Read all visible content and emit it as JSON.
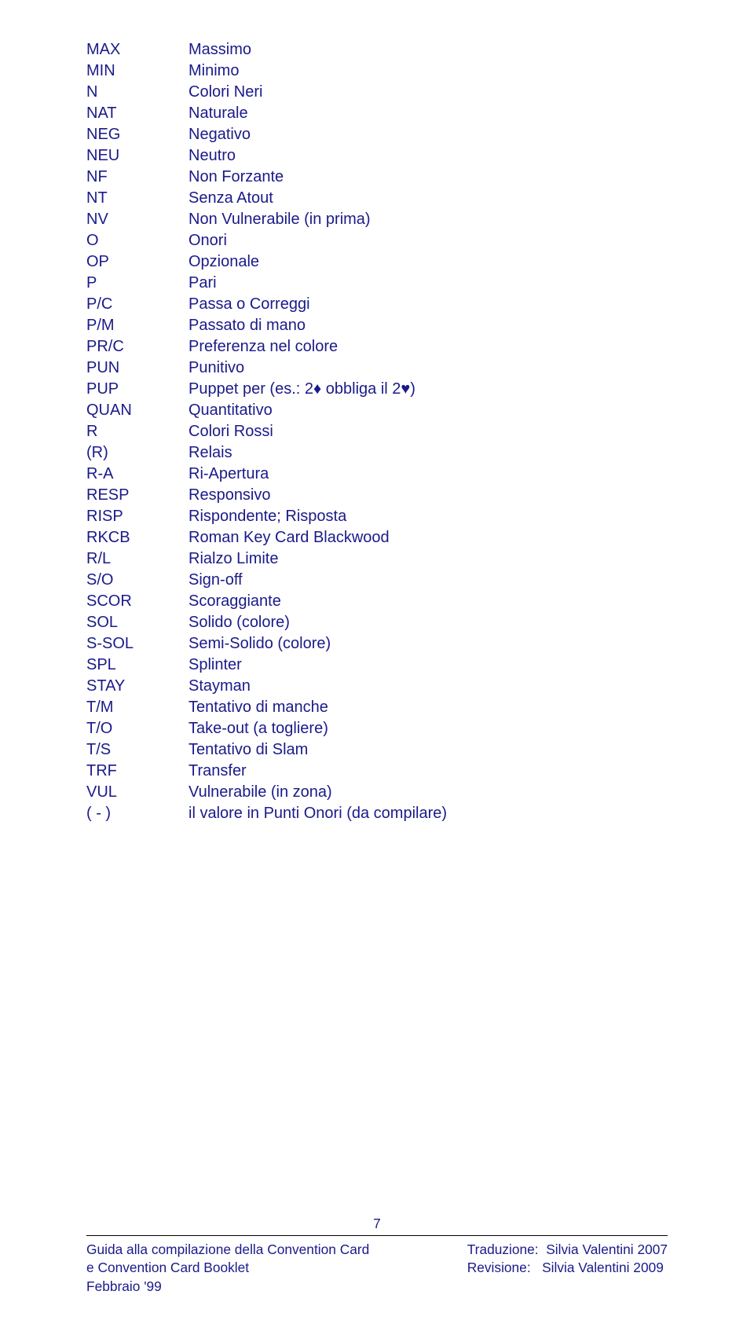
{
  "text_color": "#1a1a8a",
  "font_size_pt": 15,
  "line_height": 1.35,
  "footer_font_size_pt": 13,
  "suit_diamond": "♦",
  "suit_heart": "♥",
  "entries": [
    {
      "abbr": "MAX",
      "def": "Massimo"
    },
    {
      "abbr": "MIN",
      "def": "Minimo"
    },
    {
      "abbr": "N",
      "def": "Colori Neri"
    },
    {
      "abbr": "NAT",
      "def": "Naturale"
    },
    {
      "abbr": "NEG",
      "def": "Negativo"
    },
    {
      "abbr": "NEU",
      "def": "Neutro"
    },
    {
      "abbr": "NF",
      "def": "Non Forzante"
    },
    {
      "abbr": "NT",
      "def": "Senza Atout"
    },
    {
      "abbr": "NV",
      "def": "Non Vulnerabile (in prima)"
    },
    {
      "abbr": "O",
      "def": "Onori"
    },
    {
      "abbr": "OP",
      "def": "Opzionale"
    },
    {
      "abbr": "P",
      "def": "Pari"
    },
    {
      "abbr": "P/C",
      "def": "Passa o Correggi"
    },
    {
      "abbr": "P/M",
      "def": "Passato di mano"
    },
    {
      "abbr": "PR/C",
      "def": "Preferenza nel colore"
    },
    {
      "abbr": "PUN",
      "def": "Punitivo"
    },
    {
      "abbr": "PUP",
      "def_pre": "Puppet per (es.: 2",
      "suit1": "diamond",
      "def_mid": " obbliga il 2",
      "suit2": "heart",
      "def_post": ")"
    },
    {
      "abbr": "QUAN",
      "def": "Quantitativo"
    },
    {
      "abbr": "R",
      "def": "Colori Rossi"
    },
    {
      "abbr": "(R)",
      "def": "Relais"
    },
    {
      "abbr": "R-A",
      "def": "Ri-Apertura"
    },
    {
      "abbr": "RESP",
      "def": "Responsivo"
    },
    {
      "abbr": "RISP",
      "def": "Rispondente; Risposta"
    },
    {
      "abbr": "RKCB",
      "def": "Roman Key Card Blackwood"
    },
    {
      "abbr": "R/L",
      "def": "Rialzo Limite"
    },
    {
      "abbr": "S/O",
      "def": "Sign-off"
    },
    {
      "abbr": "SCOR",
      "def": "Scoraggiante"
    },
    {
      "abbr": "SOL",
      "def": "Solido (colore)"
    },
    {
      "abbr": "S-SOL",
      "def": "Semi-Solido (colore)"
    },
    {
      "abbr": "SPL",
      "def": "Splinter"
    },
    {
      "abbr": "STAY",
      "def": "Stayman"
    },
    {
      "abbr": "T/M",
      "def": "Tentativo di manche"
    },
    {
      "abbr": "T/O",
      "def": "Take-out (a togliere)"
    },
    {
      "abbr": "T/S",
      "def": "Tentativo di Slam"
    },
    {
      "abbr": "TRF",
      "def": "Transfer"
    },
    {
      "abbr": "VUL",
      "def": "Vulnerabile (in zona)"
    },
    {
      "abbr": "( - )",
      "def": "il valore in Punti Onori (da compilare)"
    }
  ],
  "page_number": "7",
  "footer": {
    "left_line1": "Guida alla compilazione della Convention Card",
    "left_line2": "e Convention Card Booklet",
    "left_line3": "Febbraio '99",
    "right_line1": "Traduzione:  Silvia Valentini 2007",
    "right_line2": "Revisione:   Silvia Valentini 2009"
  }
}
